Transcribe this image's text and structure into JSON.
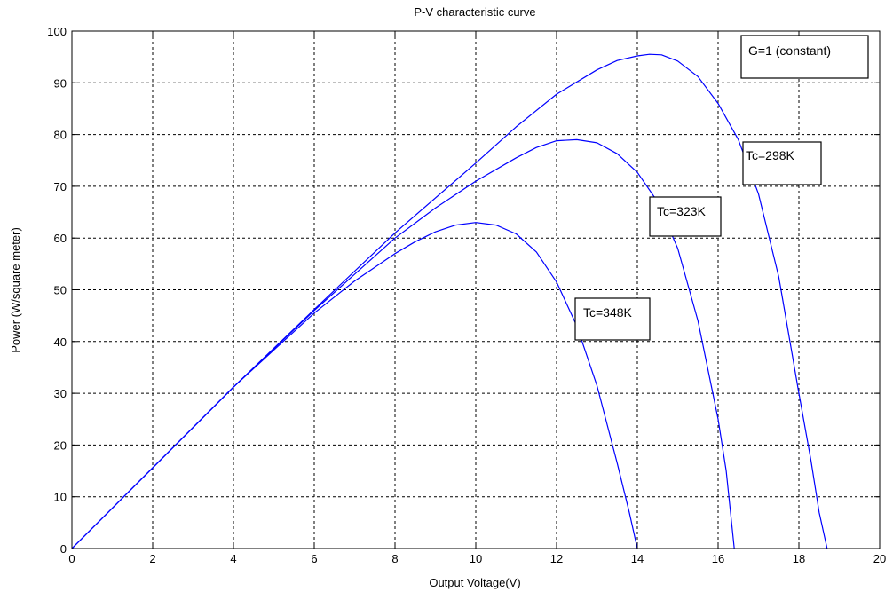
{
  "chart_data": {
    "type": "line",
    "title": "P-V characteristic curve",
    "xlabel": "Output Voltage(V)",
    "ylabel": "Power (W/square meter)",
    "xlim": [
      0,
      20
    ],
    "ylim": [
      0,
      100
    ],
    "xticks": [
      "0",
      "2",
      "4",
      "6",
      "8",
      "10",
      "12",
      "14",
      "16",
      "18",
      "20"
    ],
    "yticks": [
      "0",
      "10",
      "20",
      "30",
      "40",
      "50",
      "60",
      "70",
      "80",
      "90",
      "100"
    ],
    "grid": true,
    "line_color": "#0000ff",
    "series": [
      {
        "name": "Tc=298K",
        "x": [
          0,
          2,
          4,
          6,
          8,
          10,
          11,
          12,
          13,
          13.5,
          14,
          14.3,
          14.6,
          15,
          15.5,
          16,
          16.5,
          17,
          17.5,
          18,
          18.3,
          18.5,
          18.7
        ],
        "y": [
          0,
          15.6,
          31.2,
          46.2,
          61,
          74.5,
          81.5,
          87.8,
          92.5,
          94.3,
          95.2,
          95.5,
          95.4,
          94.2,
          91.2,
          86,
          79,
          68.5,
          52.5,
          30,
          17,
          7,
          0
        ]
      },
      {
        "name": "Tc=323K",
        "x": [
          0,
          2,
          4,
          6,
          8,
          9,
          10,
          11,
          11.5,
          12,
          12.5,
          13,
          13.5,
          14,
          14.5,
          15,
          15.5,
          16,
          16.2,
          16.4
        ],
        "y": [
          0,
          15.6,
          31.2,
          46,
          60,
          65.8,
          71,
          75.5,
          77.5,
          78.8,
          79,
          78.4,
          76.3,
          72.7,
          67,
          58,
          44,
          25,
          15,
          0
        ]
      },
      {
        "name": "Tc=348K",
        "x": [
          0,
          2,
          4,
          6,
          7,
          8,
          8.5,
          9,
          9.5,
          10,
          10.5,
          11,
          11.5,
          12,
          12.5,
          13,
          13.5,
          13.8,
          14
        ],
        "y": [
          0,
          15.6,
          31.2,
          45.5,
          51.7,
          57,
          59.3,
          61.2,
          62.5,
          63,
          62.5,
          60.8,
          57.3,
          51.5,
          43,
          31.5,
          16.5,
          7,
          0
        ]
      }
    ],
    "annotations": [
      {
        "text": "G=1 (constant)",
        "box": true
      },
      {
        "text": "Tc=298K",
        "box": true
      },
      {
        "text": "Tc=323K",
        "box": true
      },
      {
        "text": "Tc=348K",
        "box": true
      }
    ]
  }
}
